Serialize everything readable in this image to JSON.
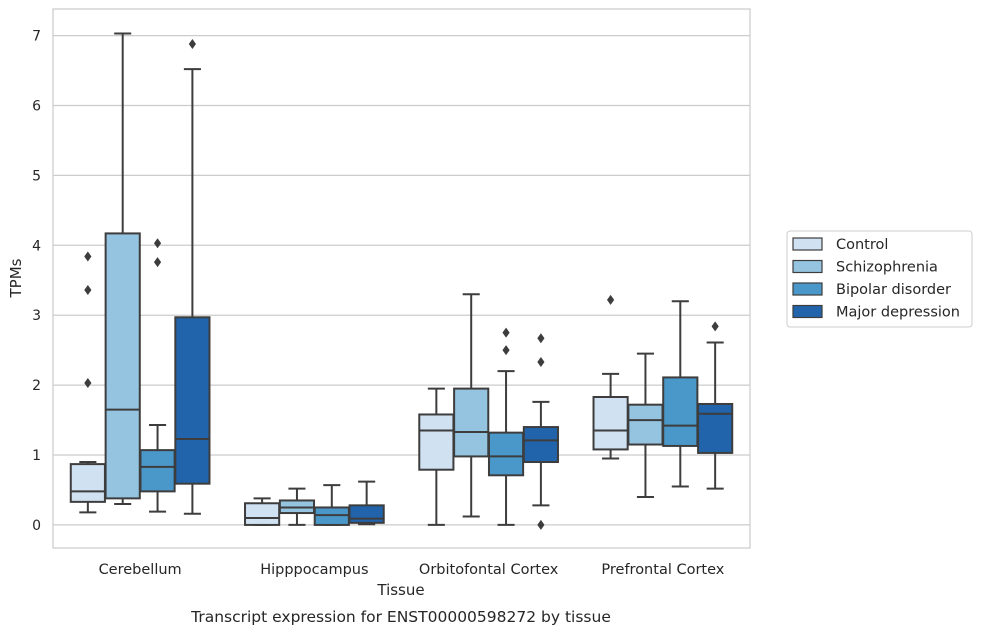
{
  "chart_data": {
    "type": "boxplot",
    "caption": "Transcript expression for ENST00000598272 by tissue",
    "xlabel": "Tissue",
    "ylabel": "TPMs",
    "ylim": [
      -0.33,
      7.38
    ],
    "yticks": [
      0,
      1,
      2,
      3,
      4,
      5,
      6,
      7
    ],
    "grid": true,
    "legend_position": "right",
    "categories": [
      "Cerebellum",
      "Hipppocampus",
      "Orbitofontal Cortex",
      "Prefrontal Cortex"
    ],
    "series": [
      {
        "name": "Control",
        "color": "#d0e1f2",
        "boxes": [
          {
            "whislo": 0.18,
            "q1": 0.33,
            "med": 0.48,
            "q3": 0.87,
            "whishi": 0.9,
            "fliers": [
              2.03,
              3.36,
              3.84
            ]
          },
          {
            "whislo": 0.0,
            "q1": 0.0,
            "med": 0.1,
            "q3": 0.31,
            "whishi": 0.38,
            "fliers": []
          },
          {
            "whislo": 0.0,
            "q1": 0.79,
            "med": 1.35,
            "q3": 1.58,
            "whishi": 1.95,
            "fliers": []
          },
          {
            "whislo": 0.95,
            "q1": 1.08,
            "med": 1.35,
            "q3": 1.83,
            "whishi": 2.16,
            "fliers": [
              3.22
            ]
          }
        ]
      },
      {
        "name": "Schizophrenia",
        "color": "#94c4df",
        "boxes": [
          {
            "whislo": 0.3,
            "q1": 0.38,
            "med": 1.65,
            "q3": 4.17,
            "whishi": 7.03,
            "fliers": []
          },
          {
            "whislo": 0.0,
            "q1": 0.17,
            "med": 0.25,
            "q3": 0.35,
            "whishi": 0.52,
            "fliers": []
          },
          {
            "whislo": 0.12,
            "q1": 0.98,
            "med": 1.33,
            "q3": 1.95,
            "whishi": 3.3,
            "fliers": []
          },
          {
            "whislo": 0.4,
            "q1": 1.15,
            "med": 1.5,
            "q3": 1.72,
            "whishi": 2.45,
            "fliers": []
          }
        ]
      },
      {
        "name": "Bipolar disorder",
        "color": "#4a98c9",
        "boxes": [
          {
            "whislo": 0.19,
            "q1": 0.48,
            "med": 0.83,
            "q3": 1.07,
            "whishi": 1.43,
            "fliers": [
              3.76,
              4.03
            ]
          },
          {
            "whislo": 0.0,
            "q1": 0.0,
            "med": 0.14,
            "q3": 0.25,
            "whishi": 0.57,
            "fliers": []
          },
          {
            "whislo": 0.0,
            "q1": 0.71,
            "med": 0.98,
            "q3": 1.32,
            "whishi": 2.2,
            "fliers": [
              2.5,
              2.75
            ]
          },
          {
            "whislo": 0.55,
            "q1": 1.13,
            "med": 1.42,
            "q3": 2.11,
            "whishi": 3.2,
            "fliers": []
          }
        ]
      },
      {
        "name": "Major depression",
        "color": "#2164ab",
        "boxes": [
          {
            "whislo": 0.16,
            "q1": 0.59,
            "med": 1.23,
            "q3": 2.97,
            "whishi": 6.52,
            "fliers": [
              6.88
            ]
          },
          {
            "whislo": 0.01,
            "q1": 0.03,
            "med": 0.09,
            "q3": 0.28,
            "whishi": 0.62,
            "fliers": []
          },
          {
            "whislo": 0.28,
            "q1": 0.9,
            "med": 1.21,
            "q3": 1.4,
            "whishi": 1.76,
            "fliers": [
              0.0,
              2.33,
              2.67
            ]
          },
          {
            "whislo": 0.52,
            "q1": 1.03,
            "med": 1.59,
            "q3": 1.73,
            "whishi": 2.61,
            "fliers": [
              2.84
            ]
          }
        ]
      }
    ]
  }
}
